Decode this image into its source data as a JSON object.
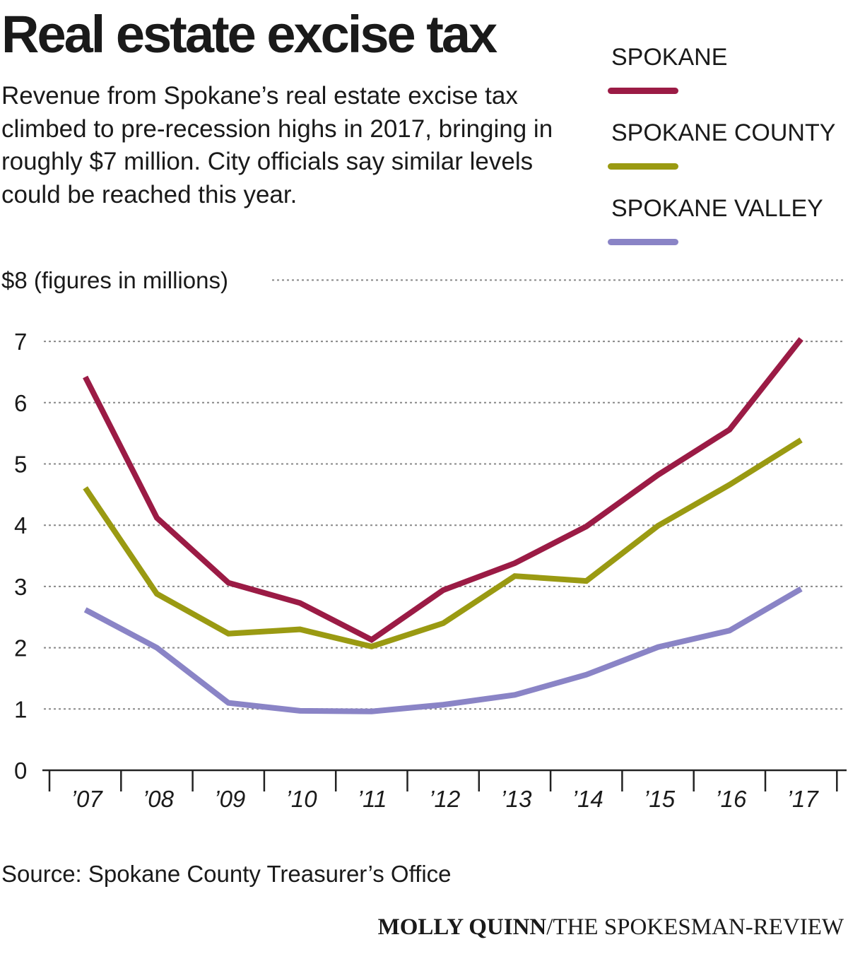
{
  "title": "Real estate excise tax",
  "subtitle": "Revenue from Spokane’s real estate excise tax climbed to pre-recession highs in 2017, bringing in roughly $7 million. City officials say similar levels could be reached this year.",
  "source": "Source: Spokane County Treasurer’s Office",
  "credit": {
    "author": "MOLLY QUINN",
    "outlet": "/THE SPOKESMAN-REVIEW"
  },
  "chart_data": {
    "type": "line",
    "title": "Real estate excise tax",
    "ylabel": "$8 (figures in millions)",
    "ylim": [
      0,
      8
    ],
    "yticks": [
      "0",
      "1",
      "2",
      "3",
      "4",
      "5",
      "6",
      "7"
    ],
    "grid": true,
    "legend_position": "top-right",
    "categories": [
      "’07",
      "’08",
      "’09",
      "’10",
      "’11",
      "’12",
      "’13",
      "’14",
      "’15",
      "’16",
      "’17"
    ],
    "series": [
      {
        "name": "SPOKANE",
        "color": "#9b1b45",
        "values": [
          6.42,
          4.12,
          3.06,
          2.73,
          2.13,
          2.94,
          3.38,
          3.98,
          4.82,
          5.56,
          7.04
        ]
      },
      {
        "name": "SPOKANE COUNTY",
        "color": "#9a9a12",
        "values": [
          4.61,
          2.88,
          2.23,
          2.3,
          2.02,
          2.4,
          3.17,
          3.09,
          3.99,
          4.66,
          5.39
        ]
      },
      {
        "name": "SPOKANE VALLEY",
        "color": "#8a84c6",
        "values": [
          2.62,
          2.0,
          1.1,
          0.97,
          0.96,
          1.07,
          1.23,
          1.56,
          2.01,
          2.28,
          2.96
        ]
      }
    ]
  }
}
